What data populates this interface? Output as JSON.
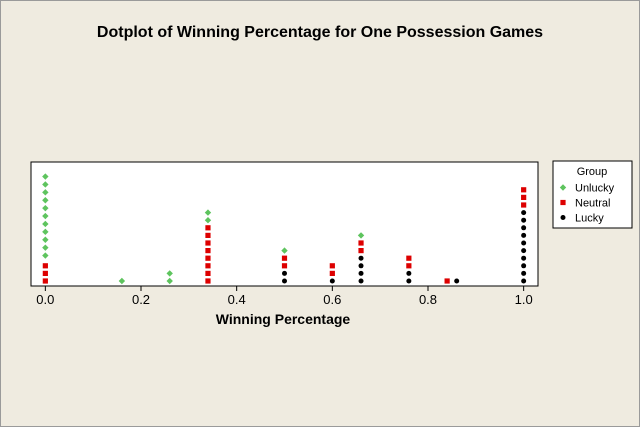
{
  "chart_data": {
    "type": "scatter",
    "title": "Dotplot of Winning Percentage for One Possession Games",
    "xlabel": "Winning Percentage",
    "ylabel": "",
    "xlim": [
      -0.03,
      1.03
    ],
    "xticks": [
      "0.0",
      "0.2",
      "0.4",
      "0.6",
      "0.8",
      "1.0"
    ],
    "grid": false,
    "legend_position": "right",
    "legend_title": "Group",
    "series": [
      {
        "name": "Unlucky",
        "marker": "diamond",
        "color": "#5ec45e"
      },
      {
        "name": "Neutral",
        "marker": "square",
        "color": "#dd0000"
      },
      {
        "name": "Lucky",
        "marker": "circle",
        "color": "#000000"
      }
    ],
    "stacks": [
      {
        "x": 0.0,
        "counts": [
          0,
          3,
          0
        ],
        "above": 11
      },
      {
        "x": 0.16,
        "counts": [
          1,
          0,
          0
        ]
      },
      {
        "x": 0.26,
        "counts": [
          2,
          0,
          0
        ]
      },
      {
        "x": 0.34,
        "counts": [
          2,
          8,
          0
        ]
      },
      {
        "x": 0.5,
        "counts": [
          1,
          2,
          2
        ]
      },
      {
        "x": 0.6,
        "counts": [
          0,
          2,
          1
        ]
      },
      {
        "x": 0.66,
        "counts": [
          1,
          2,
          4
        ]
      },
      {
        "x": 0.76,
        "counts": [
          0,
          2,
          2
        ]
      },
      {
        "x": 0.84,
        "counts": [
          0,
          1,
          0
        ]
      },
      {
        "x": 0.86,
        "counts": [
          0,
          0,
          1
        ]
      },
      {
        "x": 1.0,
        "counts": [
          0,
          3,
          10
        ]
      }
    ]
  }
}
